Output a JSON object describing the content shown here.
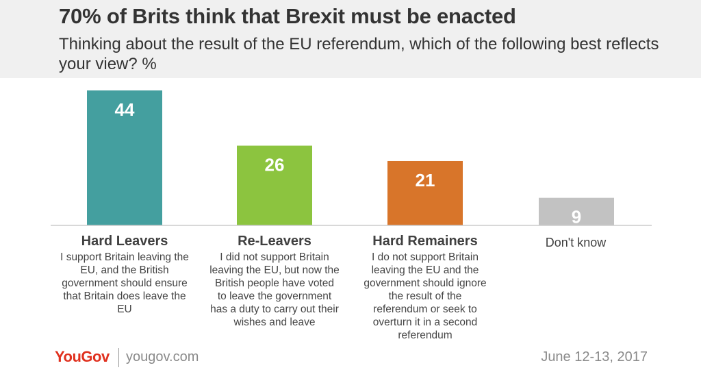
{
  "header": {
    "title": "70% of Brits think that Brexit must be enacted",
    "subtitle": "Thinking about the result of the EU referendum, which of the following best reflects your view? %"
  },
  "chart_data": {
    "type": "bar",
    "title": "70% of Brits think that Brexit must be enacted",
    "subtitle": "Thinking about the result of the EU referendum, which of the following best reflects your view? %",
    "categories": [
      "Hard Leavers",
      "Re-Leavers",
      "Hard Remainers",
      "Don't know"
    ],
    "descriptions": [
      "I support Britain leaving the EU, and the British government should ensure that Britain does leave the EU",
      "I did not support Britain leaving the EU, but now the British people have voted to leave the government has a duty to carry out their wishes and leave",
      "I do not support Britain leaving the EU and the government should ignore the result of the referendum or seek to overturn it in a second referendum",
      ""
    ],
    "values": [
      44,
      26,
      21,
      9
    ],
    "colors": [
      "#449f9f",
      "#8cc43f",
      "#d8752a",
      "#c2c2c2"
    ],
    "ylim": [
      0,
      44
    ],
    "grid": false,
    "legend": "none"
  },
  "footer": {
    "logo": "YouGov",
    "site": "yougov.com",
    "date": "June 12-13, 2017"
  }
}
